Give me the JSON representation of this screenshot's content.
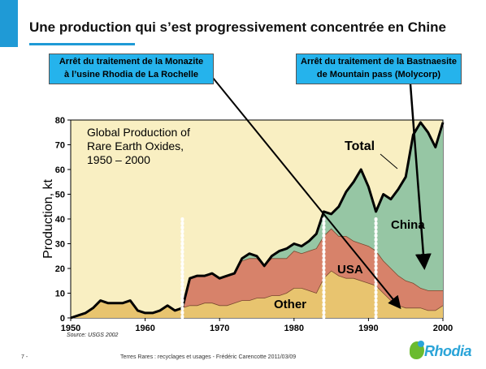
{
  "slide": {
    "title": "Une production qui s’est progressivement concentrée en Chine",
    "callout_left": [
      "Arrêt du traitement de la Monazite",
      "à l’usine Rhodia de La Rochelle"
    ],
    "callout_right": [
      "Arrêt du traitement de la Bastnaesite",
      "de Mountain pass (Molycorp)"
    ],
    "source": "Source: USGS 2002",
    "page_number": "7 -",
    "footer": "Terres Rares : recyclages et usages - Frédéric Carencotte 2011/03/09",
    "logo_text": "Rhodia",
    "accent_color": "#1f9ad6",
    "callout_color": "#25b3ec"
  },
  "chart_data": {
    "type": "area",
    "title": [
      "Global Production of",
      "Rare Earth Oxides,",
      "1950 – 2000"
    ],
    "ylabel": "Production, kt",
    "xlabel": "",
    "xlim": [
      1950,
      2000
    ],
    "ylim": [
      0,
      80
    ],
    "xticks": [
      "1950",
      "1960",
      "1970",
      "1980",
      "1990",
      "2000"
    ],
    "yticks": [
      "0",
      "10",
      "20",
      "30",
      "40",
      "50",
      "60",
      "70",
      "80"
    ],
    "x": [
      1950,
      1951,
      1952,
      1953,
      1954,
      1955,
      1956,
      1957,
      1958,
      1959,
      1960,
      1961,
      1962,
      1963,
      1964,
      1965,
      1966,
      1967,
      1968,
      1969,
      1970,
      1971,
      1972,
      1973,
      1974,
      1975,
      1976,
      1977,
      1978,
      1979,
      1980,
      1981,
      1982,
      1983,
      1984,
      1985,
      1986,
      1987,
      1988,
      1989,
      1990,
      1991,
      1992,
      1993,
      1994,
      1995,
      1996,
      1997,
      1998,
      1999,
      2000
    ],
    "series": [
      {
        "name": "Other",
        "color": "#e8c46f",
        "values": [
          0,
          1,
          2,
          4,
          7,
          6,
          6,
          6,
          7,
          3,
          2,
          2,
          3,
          5,
          3,
          4,
          5,
          5,
          6,
          6,
          5,
          5,
          6,
          7,
          7,
          8,
          8,
          9,
          9,
          10,
          12,
          12,
          11,
          10,
          16,
          19,
          17,
          16,
          16,
          15,
          14,
          13,
          10,
          7,
          5,
          4,
          4,
          4,
          3,
          3,
          5
        ]
      },
      {
        "name": "USA",
        "color": "#d7826a",
        "values": [
          0,
          1,
          2,
          4,
          7,
          6,
          6,
          6,
          7,
          3,
          2,
          2,
          3,
          5,
          3,
          4,
          16,
          17,
          17,
          18,
          16,
          17,
          18,
          23,
          24,
          24,
          21,
          24,
          24,
          24,
          27,
          26,
          27,
          28,
          33,
          36,
          33,
          33,
          31,
          30,
          29,
          27,
          23,
          20,
          17,
          15,
          14,
          12,
          11,
          11,
          11
        ]
      },
      {
        "name": "China",
        "color": "#96c6a4",
        "values": [
          0,
          1,
          2,
          4,
          7,
          6,
          6,
          6,
          7,
          3,
          2,
          2,
          3,
          5,
          3,
          4,
          16,
          17,
          17,
          18,
          16,
          17,
          18,
          24,
          26,
          25,
          21,
          25,
          27,
          28,
          30,
          29,
          31,
          34,
          43,
          42,
          45,
          51,
          55,
          60,
          53,
          43,
          50,
          48,
          52,
          57,
          74,
          79,
          75,
          69,
          79
        ]
      }
    ],
    "total": {
      "name": "Total",
      "values": [
        0,
        1,
        2,
        4,
        7,
        6,
        6,
        6,
        7,
        3,
        2,
        2,
        3,
        5,
        3,
        4,
        16,
        17,
        17,
        18,
        16,
        17,
        18,
        24,
        26,
        25,
        21,
        25,
        27,
        28,
        30,
        29,
        31,
        34,
        43,
        42,
        45,
        51,
        55,
        60,
        53,
        43,
        50,
        48,
        52,
        57,
        74,
        79,
        75,
        69,
        79
      ]
    },
    "labels": {
      "total": "Total",
      "china": "China",
      "usa": "USA",
      "other": "Other"
    },
    "plot_bg": "#f9efc2",
    "dotted_markers_years": [
      1965,
      1984,
      1991
    ]
  }
}
